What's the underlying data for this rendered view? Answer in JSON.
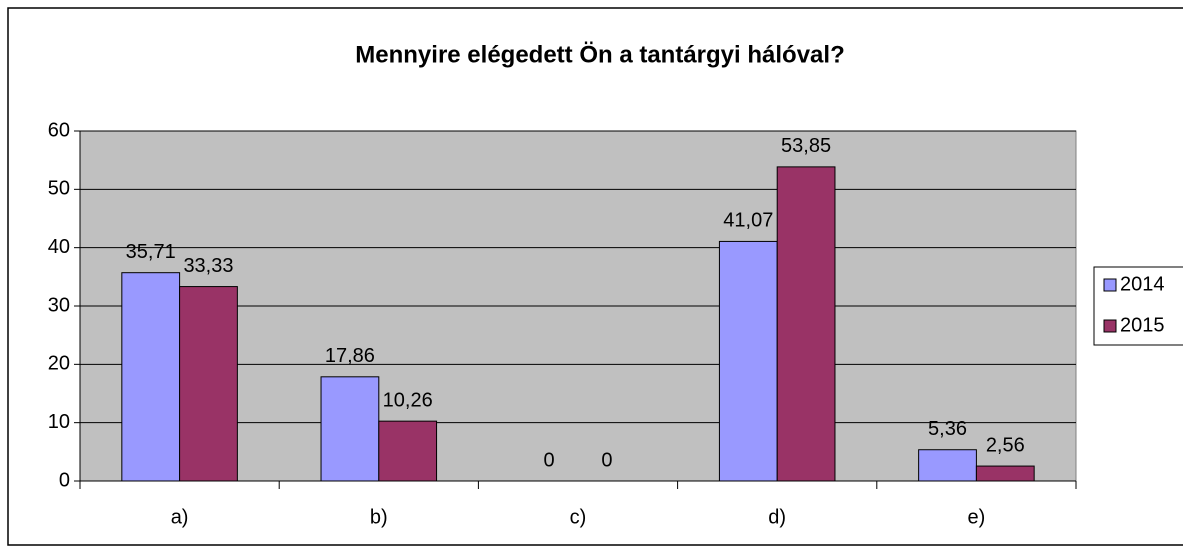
{
  "chart_data": {
    "type": "bar",
    "title": "Mennyire elégedett Ön a tantárgyi hálóval?",
    "categories": [
      "a)",
      "b)",
      "c)",
      "d)",
      "e)"
    ],
    "series": [
      {
        "name": "2014",
        "color": "#9999ff",
        "values": [
          35.71,
          17.86,
          0,
          41.07,
          5.36
        ],
        "value_labels": [
          "35,71",
          "17,86",
          "0",
          "41,07",
          "5,36"
        ]
      },
      {
        "name": "2015",
        "color": "#993366",
        "values": [
          33.33,
          10.26,
          0,
          53.85,
          2.56
        ],
        "value_labels": [
          "33,33",
          "10,26",
          "0",
          "53,85",
          "2,56"
        ]
      }
    ],
    "ylim": [
      0,
      60
    ],
    "yticks": [
      0,
      10,
      20,
      30,
      40,
      50,
      60
    ],
    "grid": true,
    "legend": "right",
    "plot_background": "#c0c0c0"
  }
}
